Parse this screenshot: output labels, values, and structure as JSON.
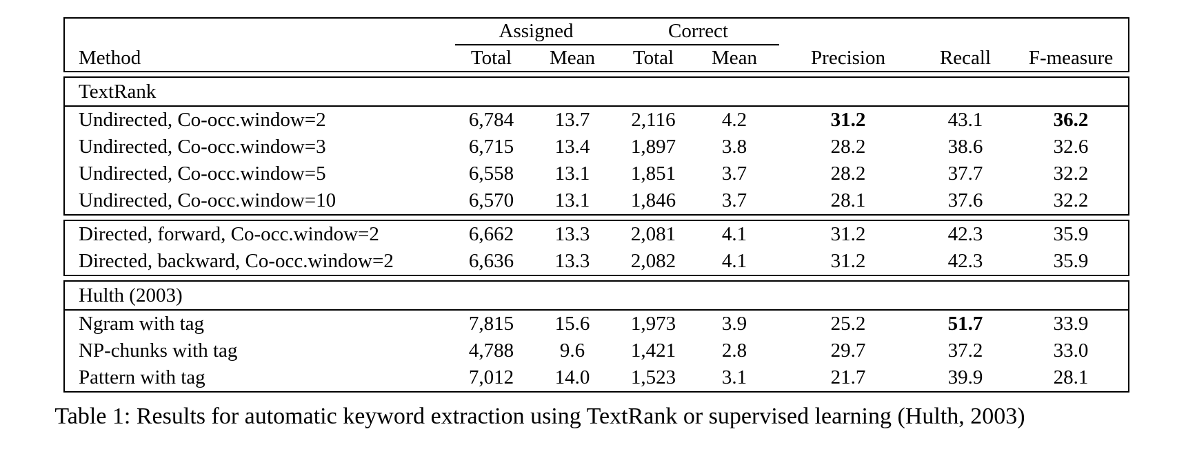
{
  "caption": "Table 1: Results for automatic keyword extraction using TextRank or supervised learning (Hulth, 2003)",
  "header": {
    "method_label": "Method",
    "assigned_group": "Assigned",
    "correct_group": "Correct",
    "assigned_total": "Total",
    "assigned_mean": "Mean",
    "correct_total": "Total",
    "correct_mean": "Mean",
    "precision": "Precision",
    "recall": "Recall",
    "f_measure": "F-measure"
  },
  "textrank": {
    "label": "TextRank",
    "rows": [
      {
        "method": "Undirected, Co-occ.window=2",
        "assigned_total": "6,784",
        "assigned_mean": "13.7",
        "correct_total": "2,116",
        "correct_mean": "4.2",
        "precision": "31.2",
        "recall": "43.1",
        "f_measure": "36.2",
        "bold_cells": [
          "precision",
          "f_measure"
        ]
      },
      {
        "method": "Undirected, Co-occ.window=3",
        "assigned_total": "6,715",
        "assigned_mean": "13.4",
        "correct_total": "1,897",
        "correct_mean": "3.8",
        "precision": "28.2",
        "recall": "38.6",
        "f_measure": "32.6",
        "bold_cells": []
      },
      {
        "method": "Undirected, Co-occ.window=5",
        "assigned_total": "6,558",
        "assigned_mean": "13.1",
        "correct_total": "1,851",
        "correct_mean": "3.7",
        "precision": "28.2",
        "recall": "37.7",
        "f_measure": "32.2",
        "bold_cells": []
      },
      {
        "method": "Undirected, Co-occ.window=10",
        "assigned_total": "6,570",
        "assigned_mean": "13.1",
        "correct_total": "1,846",
        "correct_mean": "3.7",
        "precision": "28.1",
        "recall": "37.6",
        "f_measure": "32.2",
        "bold_cells": []
      }
    ]
  },
  "directed": {
    "rows": [
      {
        "method": "Directed, forward, Co-occ.window=2",
        "assigned_total": "6,662",
        "assigned_mean": "13.3",
        "correct_total": "2,081",
        "correct_mean": "4.1",
        "precision": "31.2",
        "recall": "42.3",
        "f_measure": "35.9",
        "bold_cells": []
      },
      {
        "method": "Directed, backward, Co-occ.window=2",
        "assigned_total": "6,636",
        "assigned_mean": "13.3",
        "correct_total": "2,082",
        "correct_mean": "4.1",
        "precision": "31.2",
        "recall": "42.3",
        "f_measure": "35.9",
        "bold_cells": []
      }
    ]
  },
  "hulth": {
    "label": "Hulth (2003)",
    "rows": [
      {
        "method": "Ngram with tag",
        "assigned_total": "7,815",
        "assigned_mean": "15.6",
        "correct_total": "1,973",
        "correct_mean": "3.9",
        "precision": "25.2",
        "recall": "51.7",
        "f_measure": "33.9",
        "bold_cells": [
          "recall"
        ]
      },
      {
        "method": "NP-chunks with tag",
        "assigned_total": "4,788",
        "assigned_mean": "9.6",
        "correct_total": "1,421",
        "correct_mean": "2.8",
        "precision": "29.7",
        "recall": "37.2",
        "f_measure": "33.0",
        "bold_cells": []
      },
      {
        "method": "Pattern with tag",
        "assigned_total": "7,012",
        "assigned_mean": "14.0",
        "correct_total": "1,523",
        "correct_mean": "3.1",
        "precision": "21.7",
        "recall": "39.9",
        "f_measure": "28.1",
        "bold_cells": []
      }
    ]
  }
}
